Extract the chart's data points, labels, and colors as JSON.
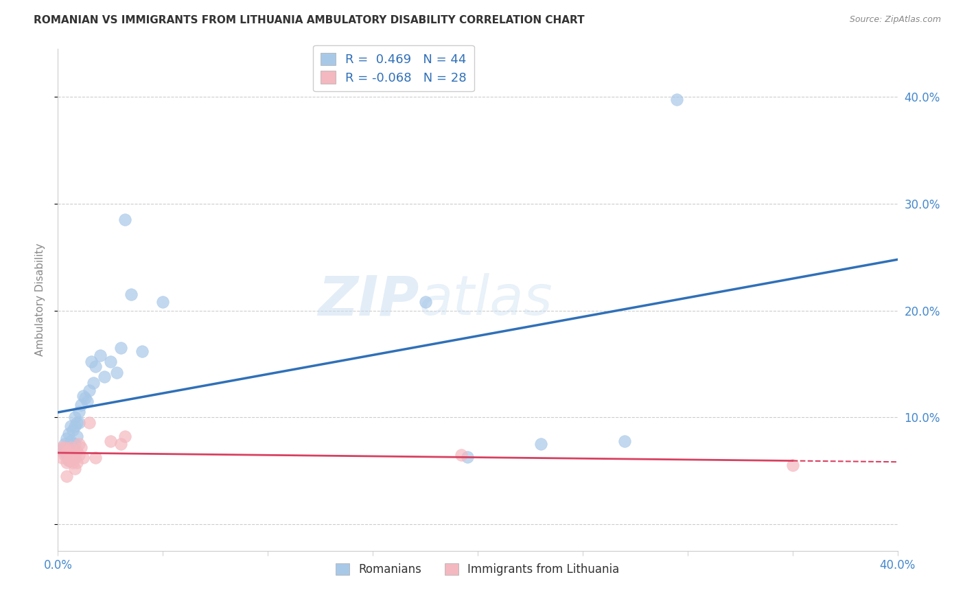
{
  "title": "ROMANIAN VS IMMIGRANTS FROM LITHUANIA AMBULATORY DISABILITY CORRELATION CHART",
  "source": "Source: ZipAtlas.com",
  "ylabel": "Ambulatory Disability",
  "watermark": "ZIPatlas",
  "xlim": [
    0.0,
    0.4
  ],
  "ylim": [
    -0.025,
    0.445
  ],
  "xticks": [
    0.0,
    0.05,
    0.1,
    0.15,
    0.2,
    0.25,
    0.3,
    0.35,
    0.4
  ],
  "xticklabels": [
    "0.0%",
    "",
    "",
    "",
    "",
    "",
    "",
    "",
    "40.0%"
  ],
  "yticks": [
    0.0,
    0.1,
    0.2,
    0.3,
    0.4
  ],
  "yticklabels": [
    "",
    "10.0%",
    "20.0%",
    "30.0%",
    "40.0%"
  ],
  "romanian_R": 0.469,
  "romanian_N": 44,
  "lithuania_R": -0.068,
  "lithuania_N": 28,
  "romanian_color": "#a8c8e8",
  "lithuania_color": "#f4b8c0",
  "romanian_line_color": "#3070b8",
  "lithuania_line_color": "#d84060",
  "background_color": "#ffffff",
  "grid_color": "#cccccc",
  "legend_text_color": "#3070b8",
  "romanian_x": [
    0.002,
    0.003,
    0.003,
    0.004,
    0.004,
    0.005,
    0.005,
    0.005,
    0.006,
    0.006,
    0.006,
    0.007,
    0.007,
    0.007,
    0.008,
    0.008,
    0.008,
    0.008,
    0.009,
    0.009,
    0.01,
    0.01,
    0.011,
    0.012,
    0.013,
    0.014,
    0.015,
    0.016,
    0.017,
    0.018,
    0.02,
    0.022,
    0.025,
    0.028,
    0.03,
    0.032,
    0.035,
    0.04,
    0.05,
    0.175,
    0.195,
    0.23,
    0.27,
    0.295
  ],
  "romanian_y": [
    0.07,
    0.068,
    0.075,
    0.065,
    0.08,
    0.072,
    0.06,
    0.085,
    0.07,
    0.078,
    0.092,
    0.062,
    0.072,
    0.088,
    0.065,
    0.075,
    0.092,
    0.1,
    0.082,
    0.095,
    0.105,
    0.095,
    0.112,
    0.12,
    0.118,
    0.115,
    0.125,
    0.152,
    0.132,
    0.148,
    0.158,
    0.138,
    0.152,
    0.142,
    0.165,
    0.285,
    0.215,
    0.162,
    0.208,
    0.208,
    0.063,
    0.075,
    0.078,
    0.398
  ],
  "lithuania_x": [
    0.002,
    0.002,
    0.003,
    0.003,
    0.004,
    0.004,
    0.004,
    0.005,
    0.005,
    0.006,
    0.006,
    0.007,
    0.007,
    0.008,
    0.008,
    0.009,
    0.009,
    0.01,
    0.01,
    0.011,
    0.012,
    0.015,
    0.018,
    0.025,
    0.03,
    0.032,
    0.192,
    0.35
  ],
  "lithuania_y": [
    0.072,
    0.062,
    0.072,
    0.065,
    0.058,
    0.068,
    0.045,
    0.07,
    0.06,
    0.06,
    0.072,
    0.065,
    0.058,
    0.052,
    0.062,
    0.068,
    0.058,
    0.075,
    0.065,
    0.072,
    0.062,
    0.095,
    0.062,
    0.078,
    0.075,
    0.082,
    0.065,
    0.055
  ]
}
